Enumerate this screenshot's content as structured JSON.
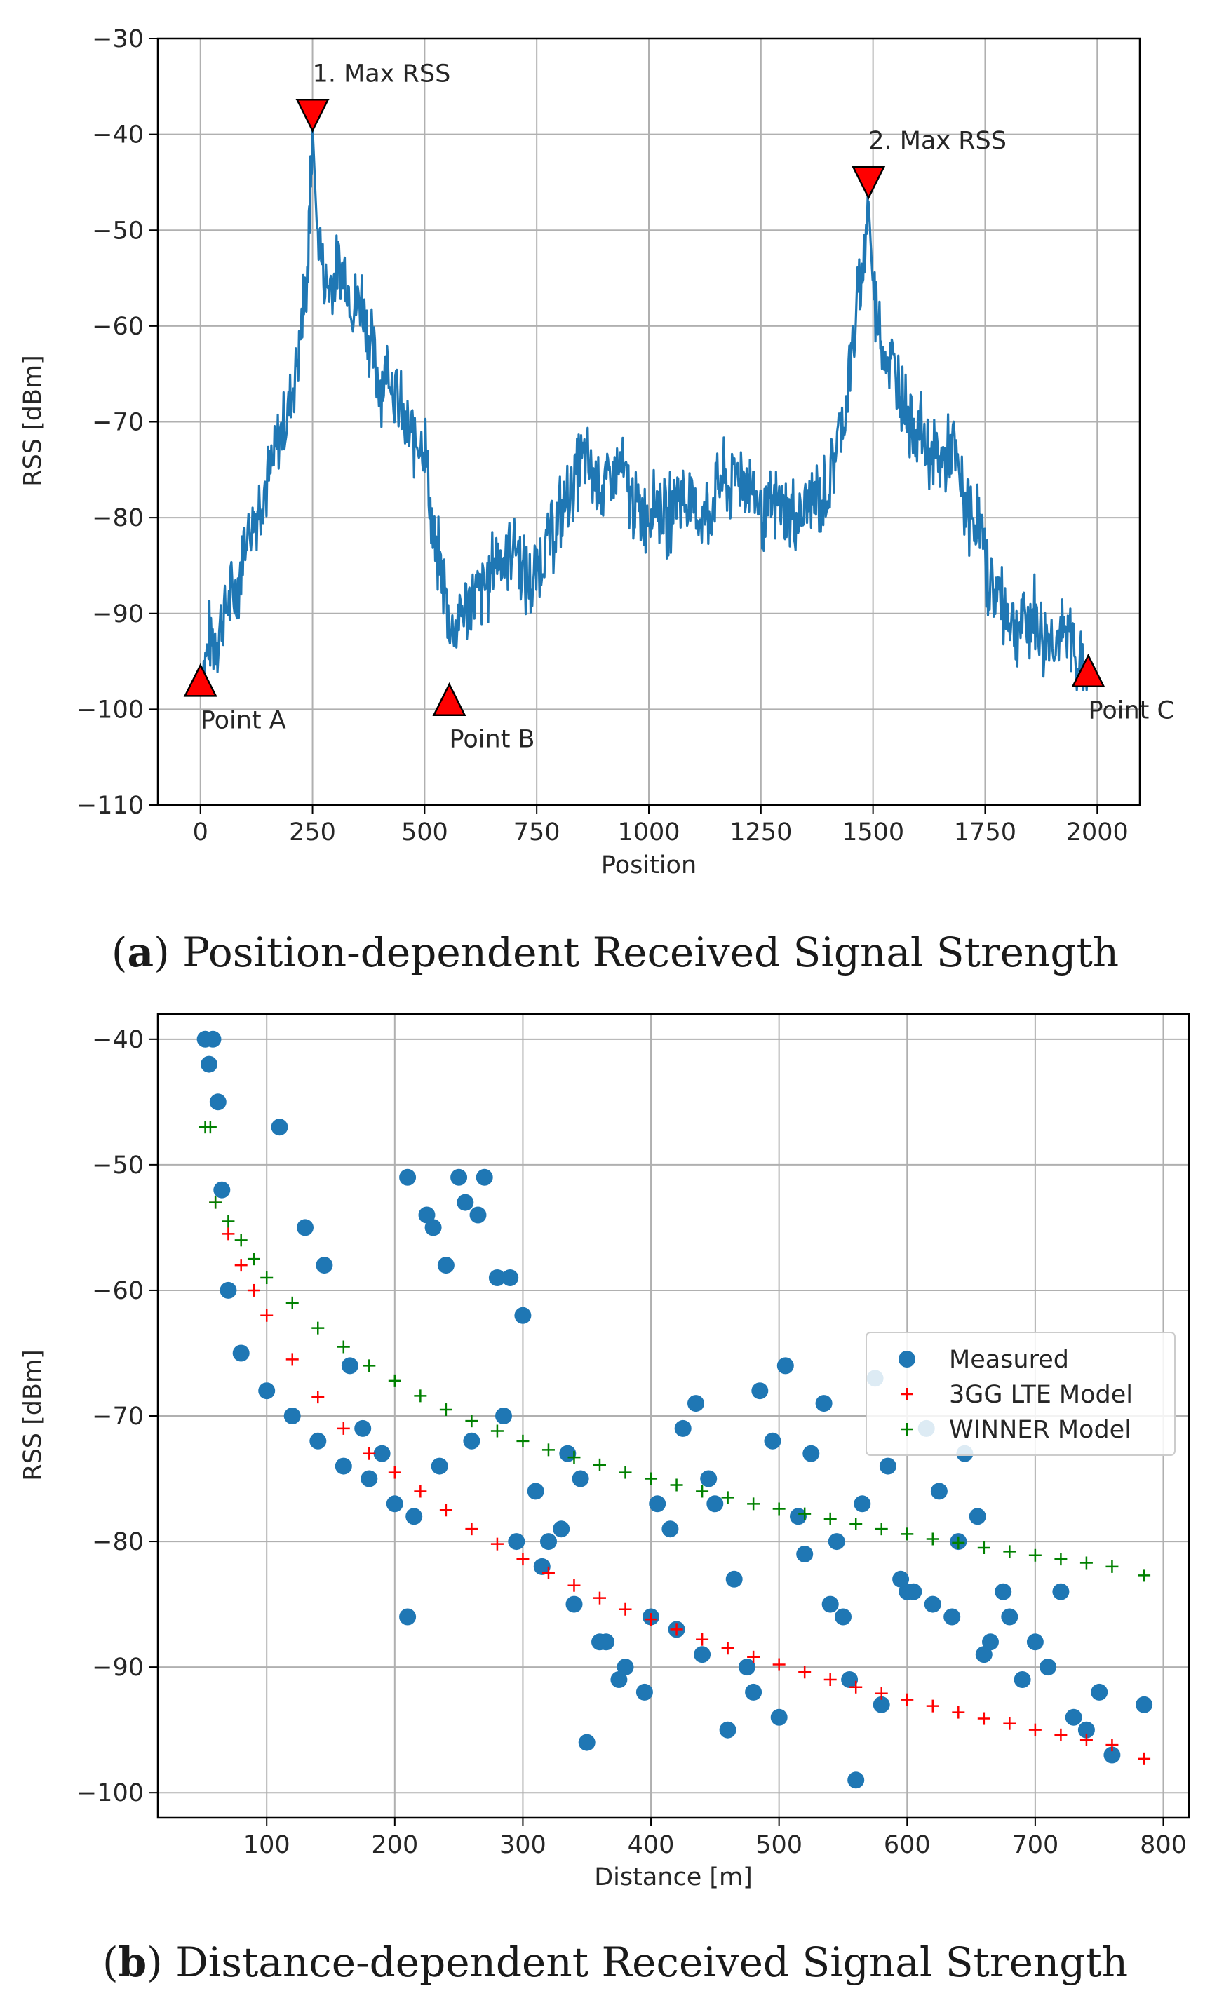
{
  "chart_data": [
    {
      "type": "line",
      "caption": {
        "open": "(",
        "letter": "a",
        "rest": ") Position-dependent Received Signal Strength"
      },
      "xlabel": "Position",
      "ylabel": "RSS [dBm]",
      "xlim": [
        -95,
        2095
      ],
      "ylim": [
        -110,
        -30
      ],
      "xticks": [
        0,
        250,
        500,
        750,
        1000,
        1250,
        1500,
        1750,
        2000
      ],
      "yticks": [
        -30,
        -40,
        -50,
        -60,
        -70,
        -80,
        -90,
        -100,
        -110
      ],
      "grid": true,
      "series": [
        {
          "color": "#1f77b4",
          "x": [
            0,
            20,
            40,
            60,
            80,
            100,
            120,
            140,
            160,
            180,
            200,
            220,
            240,
            250,
            260,
            280,
            300,
            320,
            340,
            360,
            380,
            400,
            420,
            440,
            460,
            480,
            500,
            520,
            540,
            560,
            580,
            600,
            620,
            640,
            660,
            680,
            700,
            720,
            740,
            760,
            780,
            800,
            820,
            840,
            860,
            880,
            900,
            920,
            940,
            960,
            980,
            1000,
            1020,
            1040,
            1060,
            1080,
            1100,
            1120,
            1140,
            1160,
            1180,
            1200,
            1220,
            1240,
            1260,
            1280,
            1300,
            1320,
            1340,
            1360,
            1380,
            1400,
            1420,
            1440,
            1460,
            1480,
            1490,
            1500,
            1520,
            1540,
            1560,
            1580,
            1600,
            1620,
            1640,
            1660,
            1680,
            1700,
            1720,
            1740,
            1760,
            1780,
            1800,
            1820,
            1840,
            1860,
            1880,
            1900,
            1920,
            1940,
            1960,
            1980
          ],
          "y": [
            -97,
            -93,
            -92,
            -89,
            -88,
            -82,
            -80,
            -77,
            -75,
            -71,
            -68,
            -62,
            -54,
            -39,
            -50,
            -56,
            -55,
            -54,
            -58,
            -57,
            -62,
            -66,
            -64,
            -68,
            -71,
            -72,
            -72,
            -83,
            -86,
            -92,
            -90,
            -89,
            -88,
            -87,
            -84,
            -84,
            -82,
            -86,
            -87,
            -84,
            -82,
            -80,
            -78,
            -75,
            -74,
            -76,
            -77,
            -76,
            -75,
            -78,
            -80,
            -79,
            -78,
            -81,
            -77,
            -78,
            -79,
            -80,
            -79,
            -76,
            -77,
            -75,
            -76,
            -78,
            -80,
            -79,
            -79,
            -80,
            -80,
            -78,
            -78,
            -77,
            -72,
            -68,
            -60,
            -53,
            -47,
            -56,
            -62,
            -64,
            -66,
            -70,
            -70,
            -73,
            -74,
            -74,
            -73,
            -78,
            -80,
            -81,
            -87,
            -88,
            -90,
            -91,
            -91,
            -90,
            -93,
            -92,
            -93,
            -92,
            -95,
            -96
          ],
          "noise_amplitude": 5
        }
      ],
      "markers": [
        {
          "label": "1. Max RSS",
          "x": 250,
          "y": -38,
          "direction": "down"
        },
        {
          "label": "2. Max RSS",
          "x": 1490,
          "y": -45,
          "direction": "down"
        },
        {
          "label": "Point A",
          "x": 0,
          "y": -97,
          "direction": "up"
        },
        {
          "label": "Point B",
          "x": 555,
          "y": -99,
          "direction": "up"
        },
        {
          "label": "Point C",
          "x": 1980,
          "y": -96,
          "direction": "up"
        }
      ]
    },
    {
      "type": "scatter",
      "caption": {
        "open": "(",
        "letter": "b",
        "rest": ") Distance-dependent Received Signal Strength"
      },
      "xlabel": "Distance [m]",
      "ylabel": "RSS [dBm]",
      "xlim": [
        15,
        820
      ],
      "ylim": [
        -102,
        -38
      ],
      "xticks": [
        100,
        200,
        300,
        400,
        500,
        600,
        700,
        800
      ],
      "yticks": [
        -40,
        -50,
        -60,
        -70,
        -80,
        -90,
        -100
      ],
      "grid": true,
      "legend_position": "center-right",
      "series": [
        {
          "name": "Measured",
          "color": "#1f77b4",
          "marker": "circle",
          "x": [
            52,
            55,
            58,
            62,
            65,
            70,
            80,
            100,
            120,
            140,
            160,
            180,
            200,
            210,
            230,
            250,
            270,
            280,
            300,
            320,
            340,
            350,
            360,
            380,
            400,
            420,
            440,
            450,
            460,
            480,
            500,
            520,
            540,
            550,
            560,
            580,
            600,
            620,
            640,
            660,
            680,
            700,
            720,
            740,
            760,
            785,
            240,
            255,
            265,
            290,
            310,
            330,
            210,
            225,
            110,
            130,
            145,
            165,
            175,
            190,
            215,
            235,
            260,
            285,
            295,
            315,
            335,
            345,
            365,
            375,
            395,
            405,
            415,
            425,
            435,
            445,
            465,
            475,
            485,
            495,
            505,
            515,
            525,
            535,
            545,
            555,
            565,
            575,
            585,
            595,
            605,
            615,
            625,
            635,
            645,
            655,
            665,
            675,
            690,
            710,
            730,
            750
          ],
          "y": [
            -40,
            -42,
            -40,
            -45,
            -52,
            -60,
            -65,
            -68,
            -70,
            -72,
            -74,
            -75,
            -77,
            -86,
            -55,
            -51,
            -51,
            -59,
            -62,
            -80,
            -85,
            -96,
            -88,
            -90,
            -86,
            -87,
            -89,
            -77,
            -95,
            -92,
            -94,
            -81,
            -85,
            -86,
            -99,
            -93,
            -84,
            -85,
            -80,
            -89,
            -86,
            -88,
            -84,
            -95,
            -97,
            -93,
            -58,
            -53,
            -54,
            -59,
            -76,
            -79,
            -51,
            -54,
            -47,
            -55,
            -58,
            -66,
            -71,
            -73,
            -78,
            -74,
            -72,
            -70,
            -80,
            -82,
            -73,
            -75,
            -88,
            -91,
            -92,
            -77,
            -79,
            -71,
            -69,
            -75,
            -83,
            -90,
            -68,
            -72,
            -66,
            -78,
            -73,
            -69,
            -80,
            -91,
            -77,
            -67,
            -74,
            -83,
            -84,
            -71,
            -76,
            -86,
            -73,
            -78,
            -88,
            -84,
            -91,
            -90,
            -94,
            -92
          ]
        },
        {
          "name": " 3GG LTE Model",
          "color": "#ff0000",
          "marker": "plus",
          "x": [
            60,
            70,
            80,
            90,
            100,
            120,
            140,
            160,
            180,
            200,
            220,
            240,
            260,
            280,
            300,
            320,
            340,
            360,
            380,
            400,
            420,
            440,
            460,
            480,
            500,
            520,
            540,
            560,
            580,
            600,
            620,
            640,
            660,
            680,
            700,
            720,
            740,
            760,
            785
          ],
          "y": [
            -53,
            -55.5,
            -58,
            -60,
            -62,
            -65.5,
            -68.5,
            -71,
            -73,
            -74.5,
            -76,
            -77.5,
            -79,
            -80.2,
            -81.4,
            -82.5,
            -83.5,
            -84.5,
            -85.4,
            -86.2,
            -87,
            -87.8,
            -88.5,
            -89.2,
            -89.8,
            -90.4,
            -91,
            -91.6,
            -92.1,
            -92.6,
            -93.1,
            -93.6,
            -94.1,
            -94.5,
            -95,
            -95.4,
            -95.8,
            -96.2,
            -97.3
          ]
        },
        {
          "name": "WINNER Model",
          "color": "#008000",
          "marker": "plus",
          "x": [
            52,
            56,
            60,
            70,
            80,
            90,
            100,
            120,
            140,
            160,
            180,
            200,
            220,
            240,
            260,
            280,
            300,
            320,
            340,
            360,
            380,
            400,
            420,
            440,
            460,
            480,
            500,
            520,
            540,
            560,
            580,
            600,
            620,
            640,
            660,
            680,
            700,
            720,
            740,
            760,
            785
          ],
          "y": [
            -47,
            -47,
            -53,
            -54.5,
            -56,
            -57.5,
            -59,
            -61,
            -63,
            -64.5,
            -66,
            -67.2,
            -68.4,
            -69.5,
            -70.4,
            -71.2,
            -72,
            -72.7,
            -73.3,
            -73.9,
            -74.5,
            -75,
            -75.5,
            -76,
            -76.5,
            -77,
            -77.4,
            -77.8,
            -78.2,
            -78.6,
            -79,
            -79.4,
            -79.8,
            -80.1,
            -80.5,
            -80.8,
            -81.1,
            -81.4,
            -81.7,
            -82,
            -82.7
          ]
        }
      ]
    }
  ]
}
